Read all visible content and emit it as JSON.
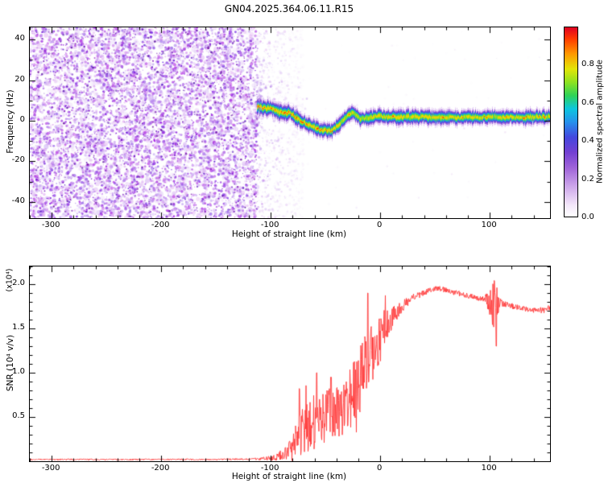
{
  "title": "GN04.2025.364.06.11.R15",
  "chart_data": [
    {
      "type": "heatmap",
      "title": "",
      "xlabel": "Height of straight line (km)",
      "ylabel": "Frequency (Hz)",
      "xlim": [
        -320,
        155
      ],
      "ylim": [
        -48,
        46
      ],
      "xticks": [
        {
          "v": -300,
          "t": "-300"
        },
        {
          "v": -200,
          "t": "-200"
        },
        {
          "v": -100,
          "t": "-100"
        },
        {
          "v": 0,
          "t": "0"
        },
        {
          "v": 100,
          "t": "100"
        }
      ],
      "yticks": [
        {
          "v": 40,
          "t": "40"
        },
        {
          "v": 20,
          "t": "20"
        },
        {
          "v": 0,
          "t": "0"
        },
        {
          "v": -20,
          "t": "-20"
        },
        {
          "v": -40,
          "t": "-40"
        }
      ],
      "xtick_minor": 20,
      "ytick_minor": 10,
      "grid": false,
      "colorbar": {
        "label": "Normalized spectral amplitude",
        "range": [
          0,
          1
        ],
        "ticks": [
          {
            "v": 0,
            "t": "0.0"
          },
          {
            "v": 0.2,
            "t": "0.2"
          },
          {
            "v": 0.4,
            "t": "0.4"
          },
          {
            "v": 0.6,
            "t": "0.6"
          },
          {
            "v": 0.8,
            "t": "0.8"
          }
        ]
      },
      "colormap": [
        {
          "v": 0,
          "c": "#ffffff"
        },
        {
          "v": 0.06,
          "c": "#f3e7fa"
        },
        {
          "v": 0.16,
          "c": "#cda6ea"
        },
        {
          "v": 0.26,
          "c": "#9e62d8"
        },
        {
          "v": 0.34,
          "c": "#7340d2"
        },
        {
          "v": 0.42,
          "c": "#4348de"
        },
        {
          "v": 0.5,
          "c": "#2592ec"
        },
        {
          "v": 0.57,
          "c": "#0cc6de"
        },
        {
          "v": 0.64,
          "c": "#2ed257"
        },
        {
          "v": 0.71,
          "c": "#8ee221"
        },
        {
          "v": 0.78,
          "c": "#e3e507"
        },
        {
          "v": 0.86,
          "c": "#ff9800"
        },
        {
          "v": 0.94,
          "c": "#ff3a00"
        },
        {
          "v": 1,
          "c": "#df0022"
        }
      ],
      "noise_region": {
        "x_range": [
          -320,
          -112
        ],
        "fade_to": -70
      },
      "band_layers": [
        {
          "hw": 4.0,
          "v": 0.1
        },
        {
          "hw": 3.0,
          "v": 0.28
        },
        {
          "hw": 2.3,
          "v": 0.42
        },
        {
          "hw": 1.8,
          "v": 0.52
        },
        {
          "hw": 1.35,
          "v": 0.62
        },
        {
          "hw": 0.95,
          "v": 0.7
        },
        {
          "hw": 0.6,
          "v": 0.8
        },
        {
          "hw": 0.3,
          "v": 0.93
        }
      ],
      "signal_trace": {
        "x": [
          -112,
          -106,
          -100,
          -94,
          -88,
          -83,
          -77,
          -71,
          -65,
          -59,
          -53,
          -48,
          -44,
          -40,
          -36,
          -32,
          -28,
          -25,
          -22,
          -18,
          -14,
          -10,
          -5,
          0,
          5,
          10,
          15,
          20,
          30,
          40,
          50,
          60,
          70,
          80,
          90,
          100,
          104,
          108,
          112,
          120,
          130,
          140,
          150,
          155
        ],
        "freq": [
          7,
          6,
          6.5,
          4.5,
          3.5,
          4,
          1.5,
          -0.5,
          -2,
          -3.5,
          -5,
          -4.5,
          -5,
          -3,
          -1,
          1,
          3.5,
          4,
          2.5,
          1,
          1,
          1.5,
          2,
          2.2,
          1.8,
          2,
          1.6,
          1.8,
          2,
          1.8,
          1.5,
          1.8,
          1.5,
          1.8,
          1.5,
          2,
          2,
          1.8,
          1.5,
          1.8,
          1.5,
          1.8,
          1.8,
          1.8
        ],
        "amp": [
          0.96,
          0.97,
          0.96,
          0.95,
          0.96,
          0.95,
          0.95,
          0.96,
          0.95,
          0.96,
          0.95,
          0.96,
          0.95,
          0.92,
          0.82,
          0.8,
          0.85,
          0.84,
          0.8,
          0.78,
          0.8,
          0.82,
          0.85,
          0.86,
          0.86,
          0.85,
          0.86,
          0.85,
          0.86,
          0.85,
          0.84,
          0.86,
          0.85,
          0.86,
          0.85,
          0.86,
          0.72,
          0.85,
          0.86,
          0.85,
          0.86,
          0.85,
          0.86,
          0.86
        ]
      }
    },
    {
      "type": "line",
      "title": "",
      "xlabel": "Height of straight line (km)",
      "ylabel": "SNR (10⁴ v/v)",
      "scale_label": "(x10⁴)",
      "color": "#ff3b3b",
      "xlim": [
        -320,
        155
      ],
      "ylim": [
        0,
        2.2
      ],
      "xticks": [
        {
          "v": -300,
          "t": "-300"
        },
        {
          "v": -200,
          "t": "-200"
        },
        {
          "v": -100,
          "t": "-100"
        },
        {
          "v": 0,
          "t": "0"
        },
        {
          "v": 100,
          "t": "100"
        }
      ],
      "yticks": [
        {
          "v": 0.5,
          "t": "0.5"
        },
        {
          "v": 1,
          "t": "1.0"
        },
        {
          "v": 1.5,
          "t": "1.5"
        },
        {
          "v": 2,
          "t": "2.0"
        }
      ],
      "xtick_minor": 20,
      "ytick_minor": 0.1,
      "grid": false,
      "envelope": {
        "x": [
          -320,
          -260,
          -200,
          -150,
          -120,
          -105,
          -95,
          -85,
          -78,
          -72,
          -66,
          -60,
          -55,
          -50,
          -45,
          -40,
          -35,
          -30,
          -25,
          -20,
          -15,
          -10,
          -5,
          0,
          5,
          10,
          15,
          20,
          25,
          30,
          35,
          40,
          45,
          50,
          55,
          60,
          70,
          80,
          90,
          95,
          100,
          103,
          106,
          110,
          118,
          126,
          134,
          142,
          150,
          155
        ],
        "y": [
          0.02,
          0.02,
          0.02,
          0.02,
          0.025,
          0.03,
          0.05,
          0.09,
          0.18,
          0.3,
          0.38,
          0.45,
          0.5,
          0.48,
          0.55,
          0.6,
          0.55,
          0.65,
          0.8,
          0.9,
          1.0,
          1.1,
          1.25,
          1.4,
          1.5,
          1.6,
          1.68,
          1.75,
          1.8,
          1.85,
          1.88,
          1.9,
          1.93,
          1.95,
          1.95,
          1.93,
          1.9,
          1.87,
          1.84,
          1.83,
          1.82,
          1.8,
          1.82,
          1.78,
          1.76,
          1.74,
          1.72,
          1.7,
          1.71,
          1.73
        ],
        "noise": [
          0.008,
          0.008,
          0.008,
          0.008,
          0.01,
          0.02,
          0.04,
          0.08,
          0.18,
          0.28,
          0.3,
          0.32,
          0.28,
          0.3,
          0.32,
          0.3,
          0.32,
          0.35,
          0.38,
          0.4,
          0.42,
          0.4,
          0.32,
          0.28,
          0.22,
          0.15,
          0.1,
          0.07,
          0.05,
          0.04,
          0.04,
          0.035,
          0.03,
          0.03,
          0.03,
          0.03,
          0.03,
          0.03,
          0.03,
          0.03,
          0.2,
          0.3,
          0.25,
          0.05,
          0.035,
          0.03,
          0.03,
          0.03,
          0.035,
          0.04
        ]
      },
      "spikes": [
        {
          "x": -74,
          "y": 0.82
        },
        {
          "x": -58,
          "y": 1.0
        },
        {
          "x": -45,
          "y": 0.95
        },
        {
          "x": -11.5,
          "y": 1.9
        },
        {
          "x": 104,
          "y": 2.04
        },
        {
          "x": 106,
          "y": 1.3
        }
      ]
    }
  ]
}
